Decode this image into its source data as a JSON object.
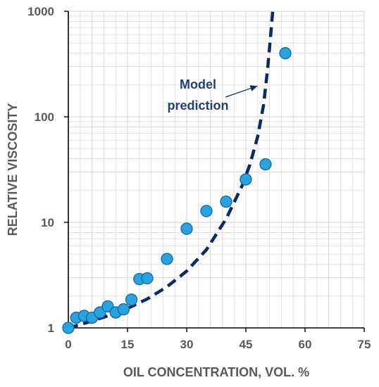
{
  "chart_data": {
    "type": "scatter",
    "xlabel": "OIL CONCENTRATION, VOL. %",
    "ylabel": "RELATIVE VISCOSITY",
    "xlim": [
      0,
      75
    ],
    "ylim": [
      1,
      1000
    ],
    "yscale": "log",
    "grid": true,
    "xticks": [
      "0",
      "15",
      "30",
      "45",
      "60",
      "75"
    ],
    "yticks": [
      "1",
      "10",
      "100",
      "1000"
    ],
    "colors": {
      "points": "#29a3e0",
      "points_edge": "#1565a8",
      "model": "#0d2a66",
      "grid": "#d9d9d9",
      "axis": "#000000",
      "text": "#595959",
      "annotation": "#1f3f7a"
    },
    "series": [
      {
        "type": "scatter",
        "points": [
          [
            0,
            1.0
          ],
          [
            2,
            1.25
          ],
          [
            4,
            1.3
          ],
          [
            6,
            1.25
          ],
          [
            8,
            1.4
          ],
          [
            10,
            1.6
          ],
          [
            12,
            1.4
          ],
          [
            14,
            1.5
          ],
          [
            16,
            1.85
          ],
          [
            18,
            2.9
          ],
          [
            20,
            2.95
          ],
          [
            25,
            4.5
          ],
          [
            30,
            8.7
          ],
          [
            35,
            12.8
          ],
          [
            40,
            15.7
          ],
          [
            45,
            25.5
          ],
          [
            50,
            35.5
          ],
          [
            55,
            400
          ]
        ]
      },
      {
        "type": "line",
        "style": "dashed",
        "points": [
          [
            0,
            1.0
          ],
          [
            5,
            1.13
          ],
          [
            10,
            1.3
          ],
          [
            15,
            1.53
          ],
          [
            20,
            1.88
          ],
          [
            25,
            2.45
          ],
          [
            30,
            3.45
          ],
          [
            35,
            5.5
          ],
          [
            40,
            10.8
          ],
          [
            44,
            22
          ],
          [
            46,
            35
          ],
          [
            48,
            65
          ],
          [
            49.5,
            130
          ],
          [
            50.5,
            280
          ],
          [
            51.3,
            600
          ],
          [
            51.8,
            1000
          ]
        ]
      }
    ],
    "annotations": [
      {
        "lines": [
          "Model",
          "prediction"
        ],
        "arrow_to": [
          49,
          190
        ]
      }
    ]
  }
}
